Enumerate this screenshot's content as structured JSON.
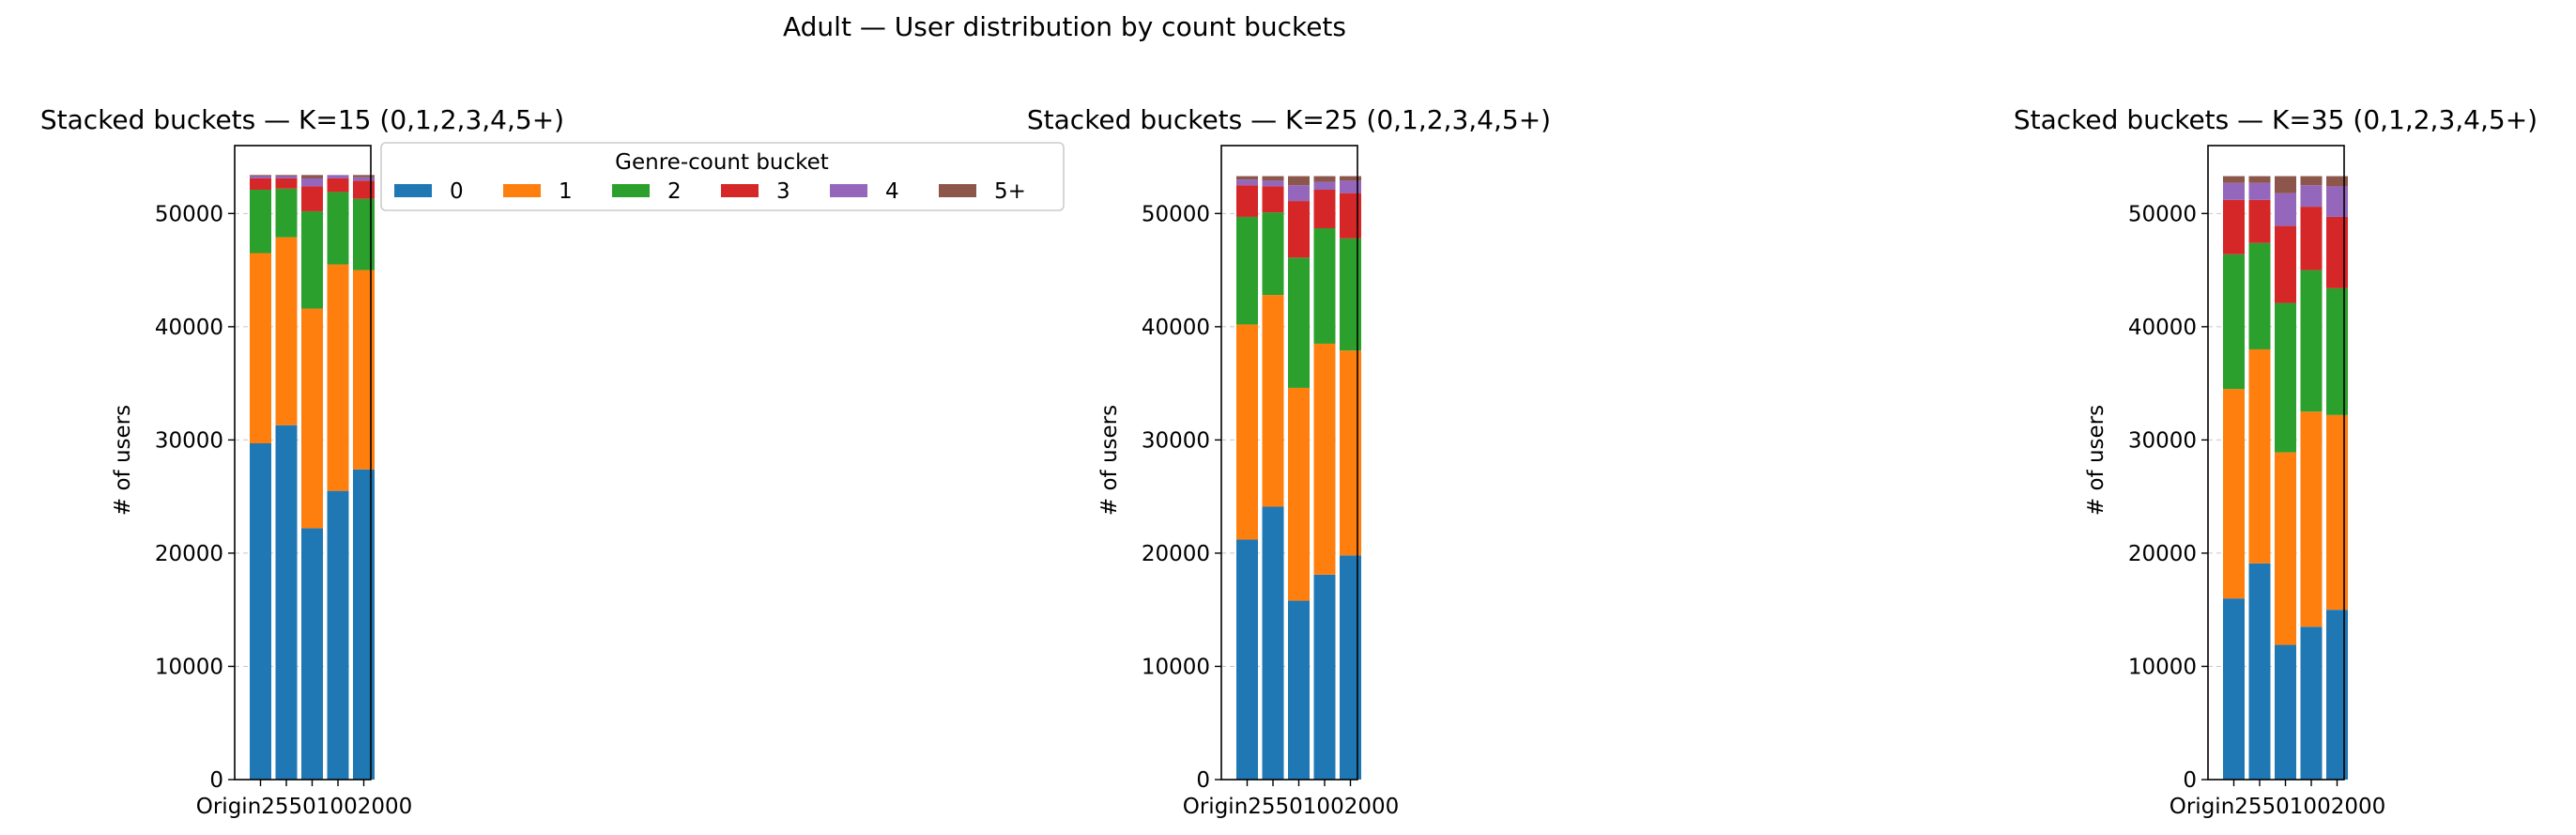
{
  "suptitle": "Adult — User distribution by count buckets",
  "colors": {
    "0": "#1f77b4",
    "1": "#ff7f0e",
    "2": "#2ca02c",
    "3": "#d62728",
    "4": "#9467bd",
    "5+": "#8c564b"
  },
  "legend": {
    "title": "Genre-count bucket",
    "placement": "right of first panel, top",
    "labels": [
      "0",
      "1",
      "2",
      "3",
      "4",
      "5+"
    ]
  },
  "chart_data": [
    {
      "type": "bar",
      "stacked": true,
      "title": "Stacked buckets — K=15  (0,1,2,3,4,5+)",
      "xlabel": "",
      "ylabel": "# of users",
      "ylim": [
        0,
        56000
      ],
      "yticks": [
        0,
        10000,
        20000,
        30000,
        40000,
        50000
      ],
      "grid": "horizontal dashed",
      "categories": [
        "Original",
        "25",
        "50",
        "100",
        "200"
      ],
      "tick_labels_text": "Origin25501002000",
      "series": [
        {
          "name": "0",
          "values": [
            29700,
            31300,
            22200,
            25500,
            27400
          ]
        },
        {
          "name": "1",
          "values": [
            16800,
            16600,
            19400,
            20000,
            17600
          ]
        },
        {
          "name": "2",
          "values": [
            5600,
            4300,
            8600,
            6400,
            6300
          ]
        },
        {
          "name": "3",
          "values": [
            1000,
            900,
            2200,
            1200,
            1600
          ]
        },
        {
          "name": "4",
          "values": [
            200,
            200,
            700,
            300,
            300
          ]
        },
        {
          "name": "5+",
          "values": [
            100,
            100,
            300,
            0,
            200
          ]
        }
      ]
    },
    {
      "type": "bar",
      "stacked": true,
      "title": "Stacked buckets — K=25  (0,1,2,3,4,5+)",
      "xlabel": "",
      "ylabel": "# of users",
      "ylim": [
        0,
        56000
      ],
      "yticks": [
        0,
        10000,
        20000,
        30000,
        40000,
        50000
      ],
      "grid": "horizontal dashed",
      "categories": [
        "Original",
        "25",
        "50",
        "100",
        "200"
      ],
      "tick_labels_text": "Origin25501002000",
      "series": [
        {
          "name": "0",
          "values": [
            21200,
            24100,
            15800,
            18100,
            19800
          ]
        },
        {
          "name": "1",
          "values": [
            19000,
            18700,
            18800,
            20400,
            18100
          ]
        },
        {
          "name": "2",
          "values": [
            9500,
            7300,
            11500,
            10200,
            9900
          ]
        },
        {
          "name": "3",
          "values": [
            2800,
            2300,
            5000,
            3400,
            4000
          ]
        },
        {
          "name": "4",
          "values": [
            500,
            500,
            1400,
            700,
            1100
          ]
        },
        {
          "name": "5+",
          "values": [
            300,
            400,
            800,
            500,
            400
          ]
        }
      ]
    },
    {
      "type": "bar",
      "stacked": true,
      "title": "Stacked buckets — K=35  (0,1,2,3,4,5+)",
      "xlabel": "",
      "ylabel": "# of users",
      "ylim": [
        0,
        56000
      ],
      "yticks": [
        0,
        10000,
        20000,
        30000,
        40000,
        50000
      ],
      "grid": "horizontal dashed",
      "categories": [
        "Original",
        "25",
        "50",
        "100",
        "200"
      ],
      "tick_labels_text": "Origin25501002000",
      "series": [
        {
          "name": "0",
          "values": [
            16000,
            19100,
            11900,
            13500,
            15000
          ]
        },
        {
          "name": "1",
          "values": [
            18500,
            18900,
            17000,
            19000,
            17200
          ]
        },
        {
          "name": "2",
          "values": [
            11900,
            9400,
            13200,
            12500,
            11200
          ]
        },
        {
          "name": "3",
          "values": [
            4800,
            3800,
            6800,
            5600,
            6300
          ]
        },
        {
          "name": "4",
          "values": [
            1500,
            1500,
            2900,
            1900,
            2700
          ]
        },
        {
          "name": "5+",
          "values": [
            600,
            600,
            1500,
            800,
            900
          ]
        }
      ]
    }
  ]
}
